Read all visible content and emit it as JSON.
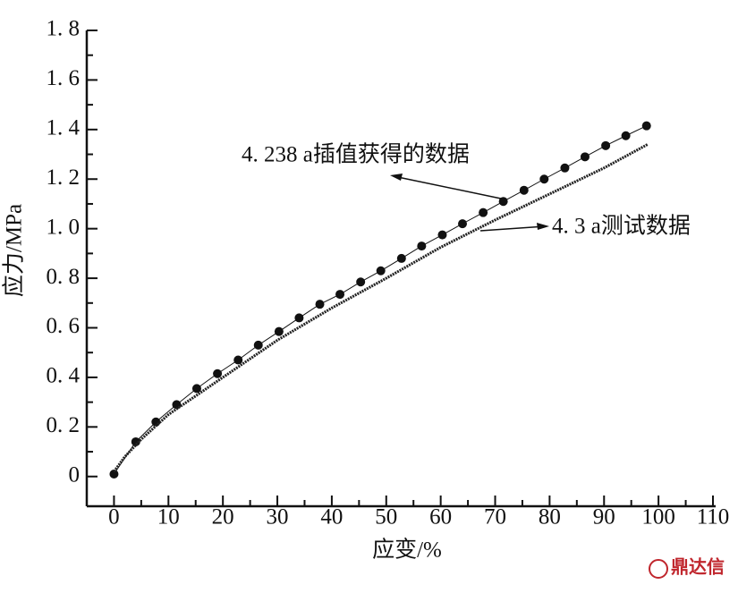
{
  "chart_data": {
    "type": "line",
    "x_label": "应变/%",
    "y_label": "应力/MPa",
    "xlim": [
      -5,
      110
    ],
    "ylim": [
      -0.12,
      1.8
    ],
    "xticks": [
      0,
      10,
      20,
      30,
      40,
      50,
      60,
      70,
      80,
      90,
      100,
      110
    ],
    "xminorticks": [
      5,
      15,
      25,
      35,
      45,
      55,
      65,
      75,
      85,
      95,
      105
    ],
    "yticks": [
      0,
      {
        "value": 0.2,
        "label": "0. 2"
      },
      {
        "value": 0.4,
        "label": "0. 4"
      },
      {
        "value": 0.6,
        "label": "0. 6"
      },
      {
        "value": 0.8,
        "label": "0. 8"
      },
      {
        "value": 1.0,
        "label": "1. 0"
      },
      {
        "value": 1.2,
        "label": "1. 2"
      },
      {
        "value": 1.4,
        "label": "1. 4"
      },
      {
        "value": 1.6,
        "label": "1. 6"
      },
      {
        "value": 1.8,
        "label": "1. 8"
      }
    ],
    "yminorticks": [
      0.1,
      0.3,
      0.5,
      0.7,
      0.9,
      1.1,
      1.3,
      1.5,
      1.7
    ],
    "series": [
      {
        "name": "4. 238 a插值获得的数据",
        "color": "#111111",
        "marker": true,
        "x": [
          0,
          4,
          7.7,
          11.5,
          15.2,
          19,
          22.8,
          26.5,
          30.3,
          34,
          37.8,
          41.5,
          45.3,
          49,
          52.8,
          56.5,
          60.3,
          64,
          67.8,
          71.5,
          75.3,
          79,
          82.8,
          86.5,
          90.3,
          94,
          97.8
        ],
        "values": [
          0.01,
          0.14,
          0.22,
          0.29,
          0.355,
          0.415,
          0.47,
          0.53,
          0.585,
          0.64,
          0.695,
          0.735,
          0.785,
          0.83,
          0.88,
          0.93,
          0.975,
          1.02,
          1.065,
          1.11,
          1.155,
          1.2,
          1.245,
          1.29,
          1.335,
          1.375,
          1.415
        ]
      },
      {
        "name": "4. 3 a测试数据",
        "color": "#222222",
        "marker": false,
        "x": [
          0,
          2,
          5,
          10,
          20,
          30,
          40,
          50,
          60,
          70,
          80,
          90,
          98
        ],
        "values": [
          0.02,
          0.08,
          0.15,
          0.25,
          0.4,
          0.55,
          0.68,
          0.8,
          0.925,
          1.035,
          1.14,
          1.245,
          1.34
        ]
      }
    ],
    "watermark": "鼎达信"
  }
}
